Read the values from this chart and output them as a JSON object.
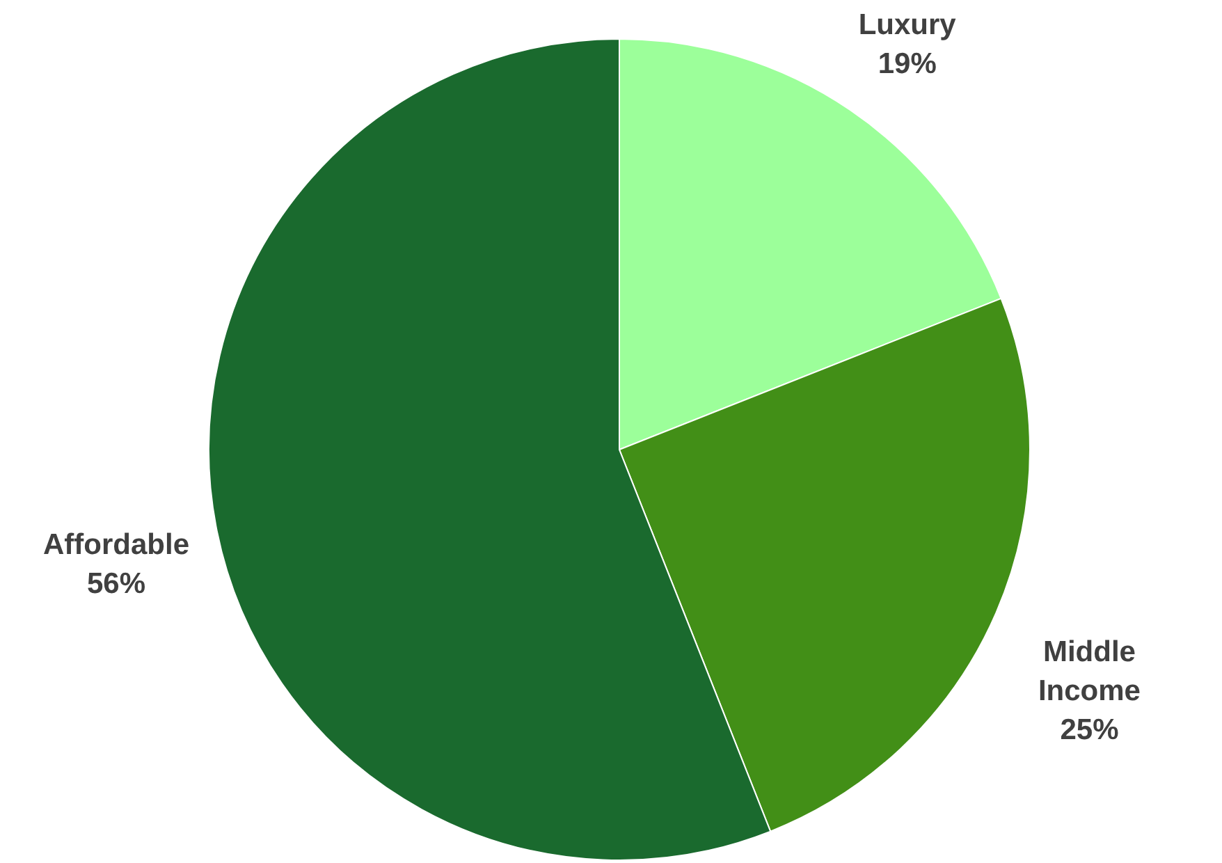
{
  "chart_data": {
    "type": "pie",
    "categories": [
      "Luxury",
      "Middle Income",
      "Affordable"
    ],
    "values": [
      19,
      25,
      56
    ],
    "value_labels": [
      "19%",
      "25%",
      "56%"
    ],
    "colors": [
      "#9cff9a",
      "#428f17",
      "#1a6a2e"
    ]
  }
}
